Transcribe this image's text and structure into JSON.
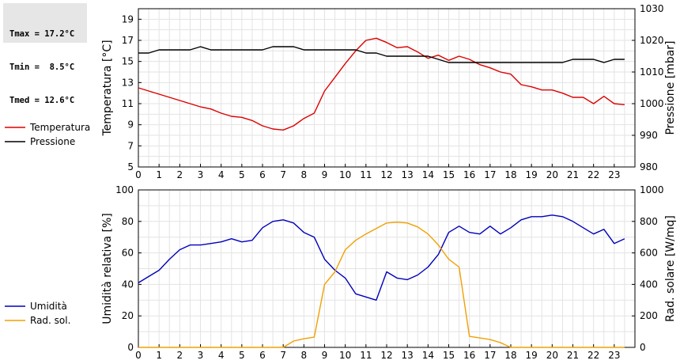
{
  "stats": {
    "tmax": "Tmax = 17.2°C",
    "tmin": "Tmin =  8.5°C",
    "tmed": "Tmed = 12.6°C"
  },
  "chart_data": [
    {
      "type": "line",
      "xlim": [
        0,
        24
      ],
      "x_ticks": [
        0,
        1,
        2,
        3,
        4,
        5,
        6,
        7,
        8,
        9,
        10,
        11,
        12,
        13,
        14,
        15,
        16,
        17,
        18,
        19,
        20,
        21,
        22,
        23
      ],
      "ylabel": "Temperatura [°C]",
      "ylim": [
        5,
        20
      ],
      "y_ticks": [
        5,
        7,
        9,
        11,
        13,
        15,
        17,
        19
      ],
      "y2label": "Pressione [mbar]",
      "y2lim": [
        980,
        1030
      ],
      "y2_ticks": [
        980,
        990,
        1000,
        1010,
        1020,
        1030
      ],
      "grid": true,
      "series": [
        {
          "name": "Temperatura",
          "axis": "left",
          "color": "#dd0000",
          "x": [
            0,
            0.5,
            1,
            1.5,
            2,
            2.5,
            3,
            3.5,
            4,
            4.5,
            5,
            5.5,
            6,
            6.5,
            7,
            7.5,
            8,
            8.5,
            9,
            9.5,
            10,
            10.5,
            11,
            11.5,
            12,
            12.5,
            13,
            13.5,
            14,
            14.5,
            15,
            15.5,
            16,
            16.5,
            17,
            17.5,
            18,
            18.5,
            19,
            19.5,
            20,
            20.5,
            21,
            21.5,
            22,
            22.5,
            23,
            23.5
          ],
          "values": [
            12.5,
            12.2,
            11.9,
            11.6,
            11.3,
            11.0,
            10.7,
            10.5,
            10.1,
            9.8,
            9.7,
            9.4,
            8.9,
            8.6,
            8.5,
            8.9,
            9.6,
            10.1,
            12.2,
            13.5,
            14.8,
            16.0,
            17.0,
            17.2,
            16.8,
            16.3,
            16.4,
            15.9,
            15.3,
            15.6,
            15.1,
            15.5,
            15.2,
            14.7,
            14.4,
            14.0,
            13.8,
            12.8,
            12.6,
            12.3,
            12.3,
            12.0,
            11.6,
            11.6,
            11.0,
            11.7,
            11.0,
            10.9
          ]
        },
        {
          "name": "Pressione",
          "axis": "right",
          "color": "#000000",
          "x": [
            0,
            0.5,
            1,
            1.5,
            2,
            2.5,
            3,
            3.5,
            4,
            4.5,
            5,
            5.5,
            6,
            6.5,
            7,
            7.5,
            8,
            8.5,
            9,
            9.5,
            10,
            10.5,
            11,
            11.5,
            12,
            12.5,
            13,
            13.5,
            14,
            14.5,
            15,
            15.5,
            16,
            16.5,
            17,
            17.5,
            18,
            18.5,
            19,
            19.5,
            20,
            20.5,
            21,
            21.5,
            22,
            22.5,
            23,
            23.5
          ],
          "values": [
            1016,
            1016,
            1017,
            1017,
            1017,
            1017,
            1018,
            1017,
            1017,
            1017,
            1017,
            1017,
            1017,
            1018,
            1018,
            1018,
            1017,
            1017,
            1017,
            1017,
            1017,
            1017,
            1016,
            1016,
            1015,
            1015,
            1015,
            1015,
            1015,
            1014,
            1013,
            1013,
            1013,
            1013,
            1013,
            1013,
            1013,
            1013,
            1013,
            1013,
            1013,
            1013,
            1014,
            1014,
            1014,
            1013,
            1014,
            1014
          ]
        }
      ]
    },
    {
      "type": "line",
      "xlim": [
        0,
        24
      ],
      "x_ticks": [
        0,
        1,
        2,
        3,
        4,
        5,
        6,
        7,
        8,
        9,
        10,
        11,
        12,
        13,
        14,
        15,
        16,
        17,
        18,
        19,
        20,
        21,
        22,
        23
      ],
      "ylabel": "Umidità relativa [%]",
      "ylim": [
        0,
        100
      ],
      "y_ticks": [
        0,
        20,
        40,
        60,
        80,
        100
      ],
      "y2label": "Rad. solare [W/mq]",
      "y2lim": [
        0,
        1000
      ],
      "y2_ticks": [
        0,
        200,
        400,
        600,
        800,
        1000
      ],
      "grid": true,
      "series": [
        {
          "name": "Umidità",
          "axis": "left",
          "color": "#0000bb",
          "x": [
            0,
            0.5,
            1,
            1.5,
            2,
            2.5,
            3,
            3.5,
            4,
            4.5,
            5,
            5.5,
            6,
            6.5,
            7,
            7.5,
            8,
            8.5,
            9,
            9.5,
            10,
            10.5,
            11,
            11.5,
            12,
            12.5,
            13,
            13.5,
            14,
            14.5,
            15,
            15.5,
            16,
            16.5,
            17,
            17.5,
            18,
            18.5,
            19,
            19.5,
            20,
            20.5,
            21,
            21.5,
            22,
            22.5,
            23,
            23.5
          ],
          "values": [
            41,
            45,
            49,
            56,
            62,
            65,
            65,
            66,
            67,
            69,
            67,
            68,
            76,
            80,
            81,
            79,
            73,
            70,
            56,
            49,
            44,
            34,
            32,
            30,
            48,
            44,
            43,
            46,
            51,
            59,
            73,
            77,
            73,
            72,
            77,
            72,
            76,
            81,
            83,
            83,
            84,
            83,
            80,
            76,
            72,
            75,
            66,
            69
          ]
        },
        {
          "name": "Rad. sol.",
          "axis": "right",
          "color": "#f0a000",
          "x": [
            0,
            1,
            2,
            3,
            4,
            5,
            6,
            7,
            7.5,
            8,
            8.5,
            9,
            9.5,
            10,
            10.5,
            11,
            11.5,
            12,
            12.5,
            13,
            13.5,
            14,
            14.5,
            15,
            15.5,
            16,
            16.5,
            17,
            17.5,
            18,
            19,
            20,
            21,
            22,
            23,
            23.5
          ],
          "values": [
            0,
            0,
            0,
            0,
            0,
            0,
            0,
            0,
            40,
            55,
            65,
            400,
            480,
            620,
            680,
            720,
            755,
            790,
            795,
            790,
            765,
            720,
            650,
            560,
            510,
            70,
            60,
            50,
            30,
            0,
            0,
            0,
            0,
            0,
            0,
            0
          ]
        }
      ]
    }
  ]
}
